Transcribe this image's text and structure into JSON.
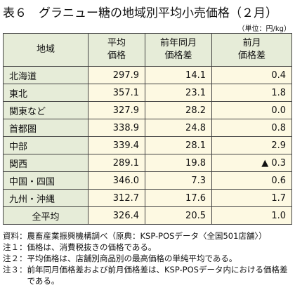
{
  "header": {
    "title": "表６　グラニュー糖の地域別平均小売価格（２月）",
    "unit": "（単位：円/kg）"
  },
  "table": {
    "columns": [
      [
        "地域"
      ],
      [
        "平均",
        "価格"
      ],
      [
        "前年同月",
        "価格差"
      ],
      [
        "前月",
        "価格差"
      ]
    ],
    "rows": [
      [
        "北海道",
        "297.9",
        "14.1",
        "0.4"
      ],
      [
        "東北",
        "357.1",
        "23.1",
        "1.8"
      ],
      [
        "関東など",
        "327.9",
        "28.2",
        "0.0"
      ],
      [
        "首都圏",
        "338.9",
        "24.8",
        "0.8"
      ],
      [
        "中部",
        "339.4",
        "28.1",
        "2.9"
      ],
      [
        "関西",
        "289.1",
        "19.8",
        "▲ 0.3"
      ],
      [
        "中国・四国",
        "346.0",
        "7.3",
        "0.6"
      ],
      [
        "九州・沖縄",
        "312.7",
        "17.6",
        "1.7"
      ],
      [
        "全平均",
        "326.4",
        "20.5",
        "1.0"
      ]
    ]
  },
  "notes": [
    {
      "label": "資料：",
      "text": "農畜産業振興機構調べ（原典：KSP-POSデータ〈全国501店舗〉）"
    },
    {
      "label": "注１：",
      "text": "価格は、消費税抜きの価格である。"
    },
    {
      "label": "注２：",
      "text": "平均価格は、店舗別商品別の最高価格の単純平均である。"
    },
    {
      "label": "注３：",
      "text": "前年同月価格差および前月価格差は、KSP-POSデータ内における価格差である。"
    }
  ]
}
